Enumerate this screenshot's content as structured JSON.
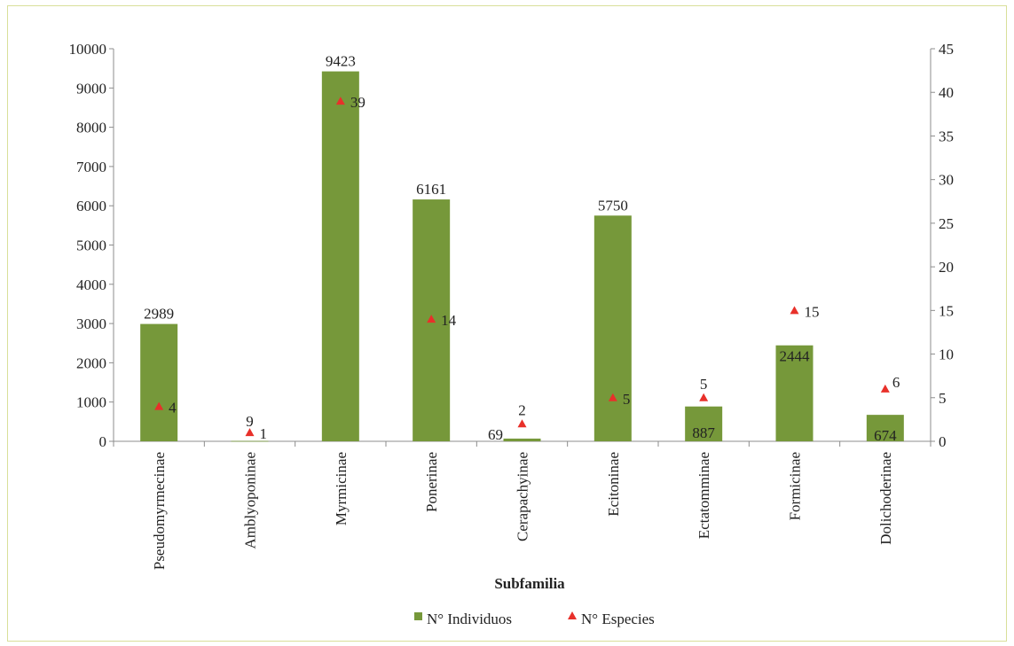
{
  "chart_data": {
    "type": "bar",
    "xlabel": "Subfamilia",
    "categories": [
      "Pseudomyrmecinae",
      "Amblyoponinae",
      "Myrmicinae",
      "Ponerinae",
      "Cerapachyinae",
      "Ecitoninae",
      "Ectatomminae",
      "Formicinae",
      "Dolichoderinae"
    ],
    "series": [
      {
        "name": "N° Individuos",
        "type": "bar",
        "axis": "left",
        "color": "#76983a",
        "values": [
          2989,
          9,
          9423,
          6161,
          69,
          5750,
          887,
          2444,
          674
        ],
        "labels": [
          "2989",
          "9",
          "9423",
          "6161",
          "69",
          "5750",
          "887",
          "2444",
          "674"
        ]
      },
      {
        "name": "N° Especies",
        "type": "scatter",
        "marker": "triangle",
        "axis": "right",
        "color": "#e8302a",
        "values": [
          4,
          1,
          39,
          14,
          2,
          5,
          5,
          15,
          6
        ],
        "labels": [
          "4",
          "1",
          "39",
          "14",
          "2",
          "5",
          "5",
          "15",
          "6"
        ]
      }
    ],
    "ylim_left": [
      0,
      10000
    ],
    "yticks_left": [
      "0",
      "1000",
      "2000",
      "3000",
      "4000",
      "5000",
      "6000",
      "7000",
      "8000",
      "9000",
      "10000"
    ],
    "ylim_right": [
      0,
      45
    ],
    "yticks_right": [
      "0",
      "5",
      "10",
      "15",
      "20",
      "25",
      "30",
      "35",
      "40",
      "45"
    ],
    "grid": false,
    "legend_position": "bottom"
  }
}
